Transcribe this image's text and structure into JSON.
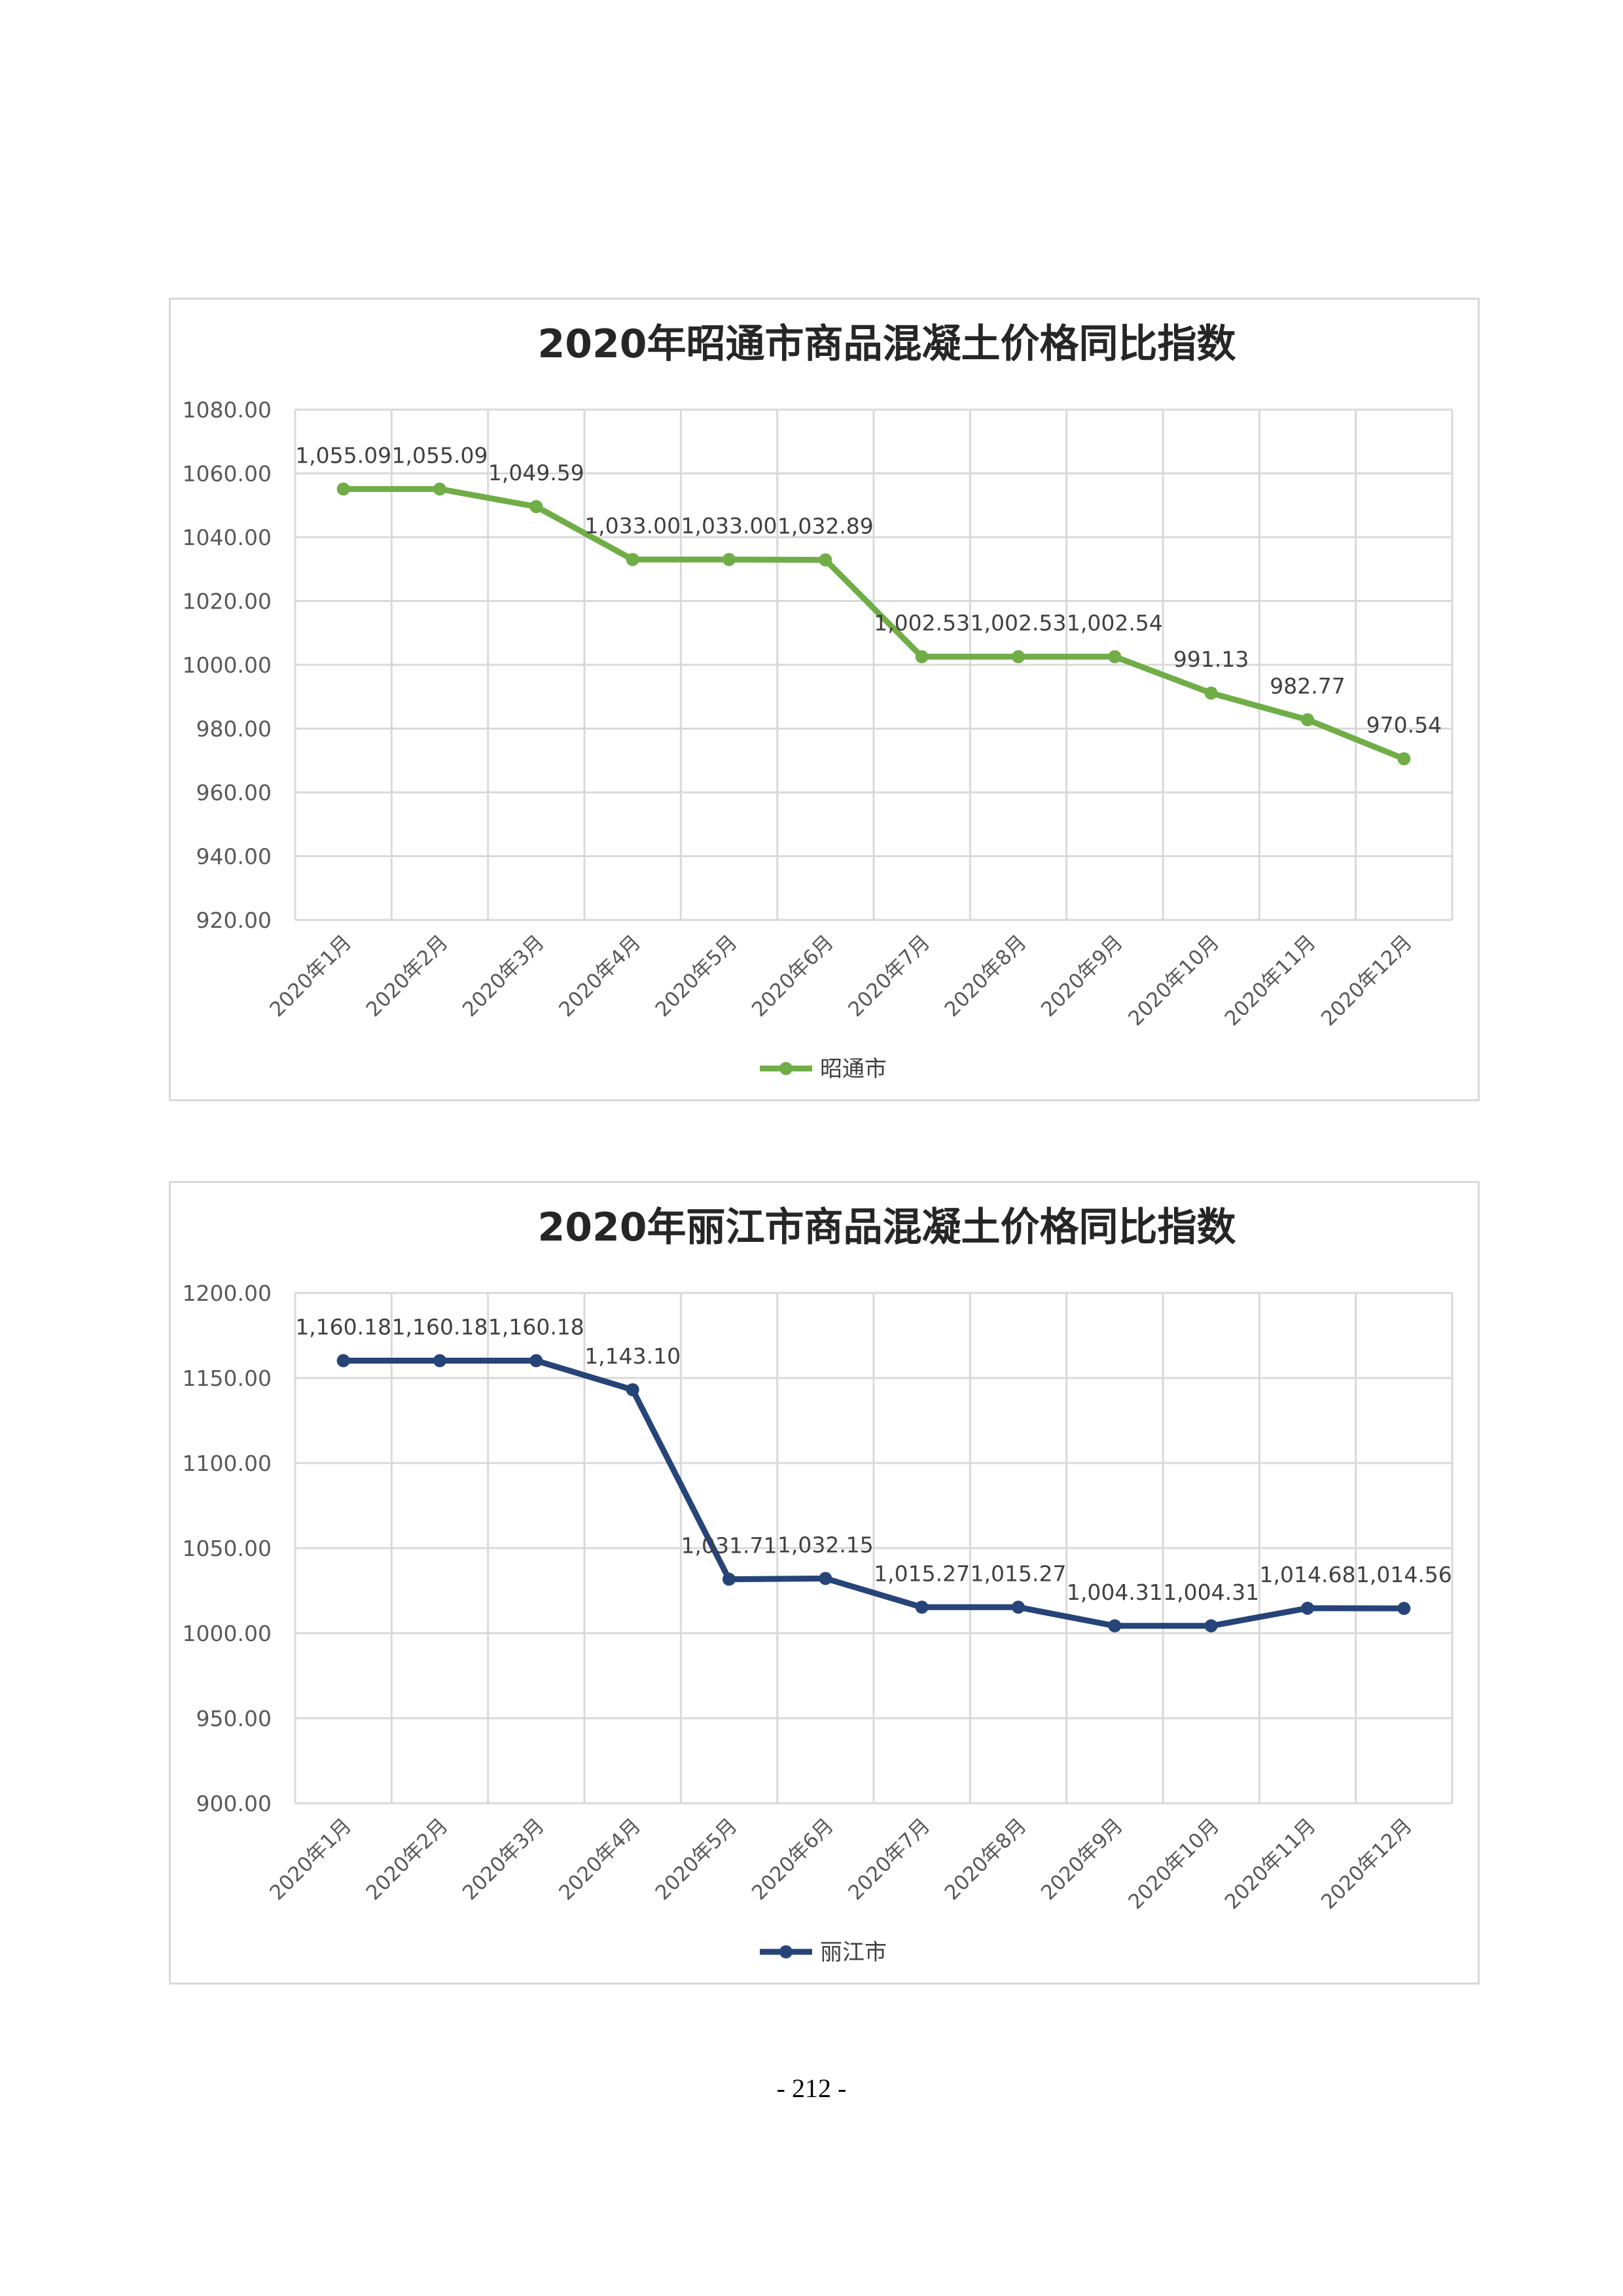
{
  "chart_data": [
    {
      "type": "line",
      "title": "2020年昭通市商品混凝土价格同比指数",
      "categories": [
        "2020年1月",
        "2020年2月",
        "2020年3月",
        "2020年4月",
        "2020年5月",
        "2020年6月",
        "2020年7月",
        "2020年8月",
        "2020年9月",
        "2020年10月",
        "2020年11月",
        "2020年12月"
      ],
      "series": [
        {
          "name": "昭通市",
          "color": "#70ad47",
          "values": [
            1055.09,
            1055.09,
            1049.59,
            1033.0,
            1033.0,
            1032.89,
            1002.53,
            1002.53,
            1002.54,
            991.13,
            982.77,
            970.54
          ],
          "data_labels": [
            "1,055.09",
            "1,055.09",
            "1,049.59",
            "1,033.00",
            "1,033.00",
            "1,032.89",
            "1,002.53",
            "1,002.53",
            "1,002.54",
            "991.13",
            "982.77",
            "970.54"
          ]
        }
      ],
      "ylim": [
        920,
        1080
      ],
      "y_ticks": [
        "1080.00",
        "1060.00",
        "1040.00",
        "1020.00",
        "1000.00",
        "980.00",
        "960.00",
        "940.00",
        "920.00"
      ],
      "y_tick_values": [
        1080,
        1060,
        1040,
        1020,
        1000,
        980,
        960,
        940,
        920
      ],
      "grid": true,
      "legend": "bottom"
    },
    {
      "type": "line",
      "title": "2020年丽江市商品混凝土价格同比指数",
      "categories": [
        "2020年1月",
        "2020年2月",
        "2020年3月",
        "2020年4月",
        "2020年5月",
        "2020年6月",
        "2020年7月",
        "2020年8月",
        "2020年9月",
        "2020年10月",
        "2020年11月",
        "2020年12月"
      ],
      "series": [
        {
          "name": "丽江市",
          "color": "#264478",
          "values": [
            1160.18,
            1160.18,
            1160.18,
            1143.1,
            1031.71,
            1032.15,
            1015.27,
            1015.27,
            1004.31,
            1004.31,
            1014.68,
            1014.56
          ],
          "data_labels": [
            "1,160.18",
            "1,160.18",
            "1,160.18",
            "1,143.10",
            "1,031.71",
            "1,032.15",
            "1,015.27",
            "1,015.27",
            "1,004.31",
            "1,004.31",
            "1,014.68",
            "1,014.56"
          ]
        }
      ],
      "ylim": [
        900,
        1200
      ],
      "y_ticks": [
        "1200.00",
        "1150.00",
        "1100.00",
        "1050.00",
        "1000.00",
        "950.00",
        "900.00"
      ],
      "y_tick_values": [
        1200,
        1150,
        1100,
        1050,
        1000,
        950,
        900
      ],
      "grid": true,
      "legend": "bottom"
    }
  ],
  "page": {
    "number": "- 212 -"
  }
}
